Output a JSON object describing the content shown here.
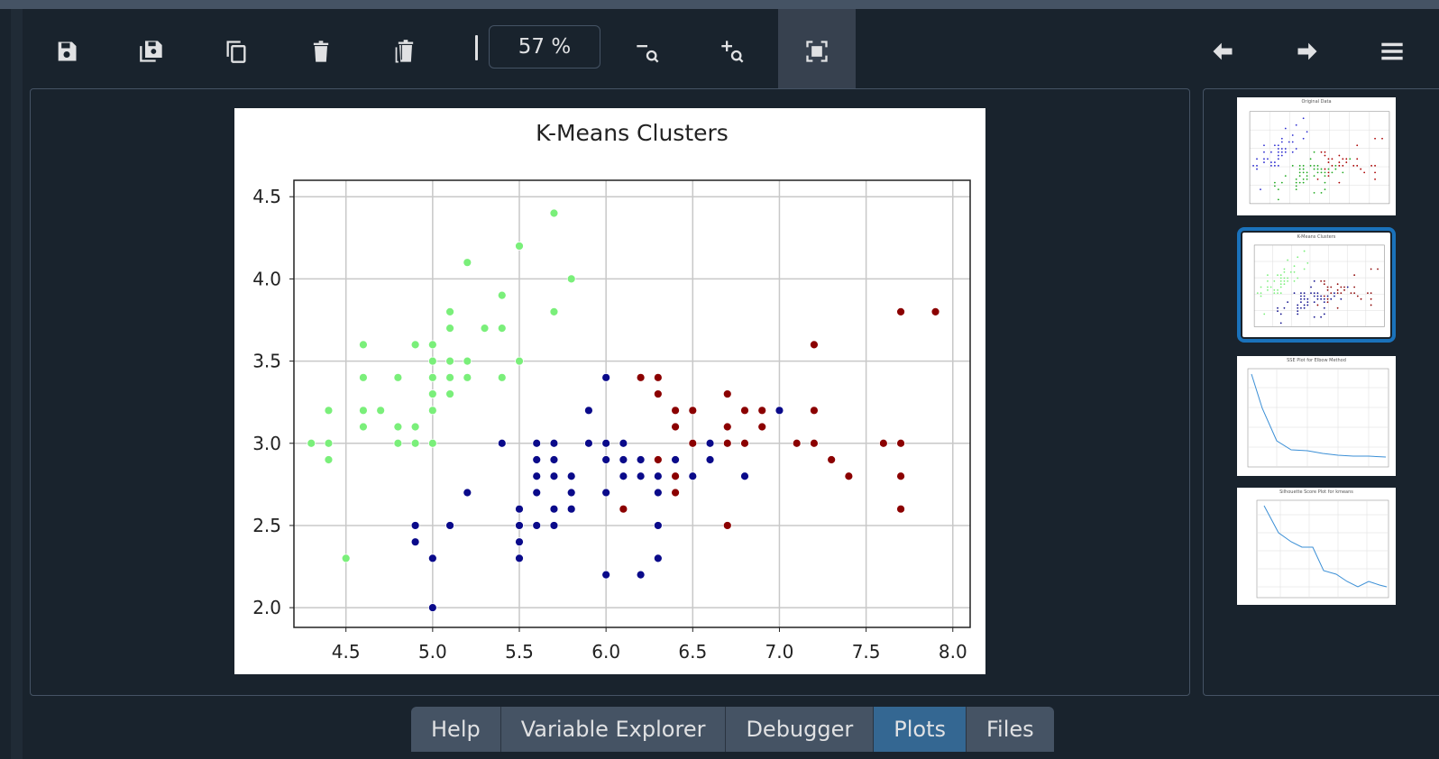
{
  "toolbar": {
    "zoom_value": "57 %",
    "buttons": [
      {
        "name": "save-icon"
      },
      {
        "name": "save-all-icon"
      },
      {
        "name": "copy-icon"
      },
      {
        "name": "delete-icon"
      },
      {
        "name": "delete-all-icon"
      },
      {
        "name": "zoom-out-icon"
      },
      {
        "name": "zoom-in-icon"
      },
      {
        "name": "fit-icon"
      },
      {
        "name": "previous-arrow-icon"
      },
      {
        "name": "next-arrow-icon"
      },
      {
        "name": "menu-icon"
      }
    ]
  },
  "chart_data": {
    "type": "scatter",
    "title": "K-Means Clusters",
    "xlabel": "",
    "ylabel": "",
    "xlim": [
      4.2,
      8.1
    ],
    "ylim": [
      1.88,
      4.6
    ],
    "xticks": [
      "4.5",
      "5.0",
      "5.5",
      "6.0",
      "6.5",
      "7.0",
      "7.5",
      "8.0"
    ],
    "yticks": [
      "2.0",
      "2.5",
      "3.0",
      "3.5",
      "4.0",
      "4.5"
    ],
    "grid": true,
    "series": [
      {
        "color": "#7aef7a",
        "points": [
          [
            4.3,
            3.0
          ],
          [
            4.4,
            3.2
          ],
          [
            4.4,
            3.0
          ],
          [
            4.4,
            2.9
          ],
          [
            4.5,
            2.3
          ],
          [
            4.6,
            3.6
          ],
          [
            4.6,
            3.4
          ],
          [
            4.6,
            3.2
          ],
          [
            4.6,
            3.1
          ],
          [
            4.7,
            3.2
          ],
          [
            4.8,
            3.4
          ],
          [
            4.8,
            3.1
          ],
          [
            4.8,
            3.0
          ],
          [
            4.9,
            3.6
          ],
          [
            4.9,
            3.1
          ],
          [
            4.9,
            3.0
          ],
          [
            5.0,
            3.6
          ],
          [
            5.0,
            3.5
          ],
          [
            5.0,
            3.4
          ],
          [
            5.0,
            3.3
          ],
          [
            5.0,
            3.2
          ],
          [
            5.0,
            3.0
          ],
          [
            5.1,
            3.8
          ],
          [
            5.1,
            3.7
          ],
          [
            5.1,
            3.5
          ],
          [
            5.1,
            3.4
          ],
          [
            5.1,
            3.3
          ],
          [
            5.2,
            4.1
          ],
          [
            5.2,
            3.5
          ],
          [
            5.2,
            3.4
          ],
          [
            5.3,
            3.7
          ],
          [
            5.4,
            3.9
          ],
          [
            5.4,
            3.7
          ],
          [
            5.4,
            3.4
          ],
          [
            5.5,
            4.2
          ],
          [
            5.5,
            3.5
          ],
          [
            5.7,
            4.4
          ],
          [
            5.7,
            3.8
          ],
          [
            5.8,
            4.0
          ]
        ]
      },
      {
        "color": "#0a0a8a",
        "points": [
          [
            4.9,
            2.5
          ],
          [
            4.9,
            2.4
          ],
          [
            5.0,
            2.3
          ],
          [
            5.0,
            2.0
          ],
          [
            5.1,
            2.5
          ],
          [
            5.2,
            2.7
          ],
          [
            5.4,
            3.0
          ],
          [
            5.5,
            2.6
          ],
          [
            5.5,
            2.5
          ],
          [
            5.5,
            2.4
          ],
          [
            5.5,
            2.3
          ],
          [
            5.6,
            3.0
          ],
          [
            5.6,
            2.9
          ],
          [
            5.6,
            2.8
          ],
          [
            5.6,
            2.7
          ],
          [
            5.6,
            2.5
          ],
          [
            5.7,
            3.0
          ],
          [
            5.7,
            2.9
          ],
          [
            5.7,
            2.8
          ],
          [
            5.7,
            2.6
          ],
          [
            5.7,
            2.5
          ],
          [
            5.8,
            2.8
          ],
          [
            5.8,
            2.7
          ],
          [
            5.8,
            2.6
          ],
          [
            5.9,
            3.2
          ],
          [
            5.9,
            3.0
          ],
          [
            6.0,
            3.4
          ],
          [
            6.0,
            3.0
          ],
          [
            6.0,
            2.9
          ],
          [
            6.0,
            2.7
          ],
          [
            6.0,
            2.2
          ],
          [
            6.1,
            3.0
          ],
          [
            6.1,
            2.9
          ],
          [
            6.1,
            2.8
          ],
          [
            6.2,
            2.9
          ],
          [
            6.2,
            2.8
          ],
          [
            6.2,
            2.2
          ],
          [
            6.3,
            2.8
          ],
          [
            6.3,
            2.7
          ],
          [
            6.3,
            2.5
          ],
          [
            6.3,
            2.3
          ],
          [
            6.4,
            2.9
          ],
          [
            6.5,
            2.8
          ],
          [
            6.6,
            3.0
          ],
          [
            6.6,
            2.9
          ],
          [
            6.8,
            2.8
          ],
          [
            7.0,
            3.2
          ]
        ]
      },
      {
        "color": "#8b0000",
        "points": [
          [
            6.1,
            2.6
          ],
          [
            6.2,
            3.4
          ],
          [
            6.3,
            3.4
          ],
          [
            6.3,
            3.3
          ],
          [
            6.3,
            2.9
          ],
          [
            6.4,
            3.2
          ],
          [
            6.4,
            3.1
          ],
          [
            6.4,
            2.8
          ],
          [
            6.4,
            2.7
          ],
          [
            6.5,
            3.2
          ],
          [
            6.5,
            3.0
          ],
          [
            6.7,
            3.3
          ],
          [
            6.7,
            3.1
          ],
          [
            6.7,
            3.0
          ],
          [
            6.7,
            2.5
          ],
          [
            6.8,
            3.2
          ],
          [
            6.8,
            3.0
          ],
          [
            6.9,
            3.2
          ],
          [
            6.9,
            3.1
          ],
          [
            7.1,
            3.0
          ],
          [
            7.2,
            3.6
          ],
          [
            7.2,
            3.2
          ],
          [
            7.2,
            3.0
          ],
          [
            7.3,
            2.9
          ],
          [
            7.4,
            2.8
          ],
          [
            7.6,
            3.0
          ],
          [
            7.7,
            3.8
          ],
          [
            7.7,
            3.0
          ],
          [
            7.7,
            2.8
          ],
          [
            7.7,
            2.6
          ],
          [
            7.9,
            3.8
          ]
        ]
      }
    ]
  },
  "thumbnails": [
    {
      "title": "Original Data"
    },
    {
      "title": "K-Means Clusters"
    },
    {
      "title": "SSE Plot for Elbow Method"
    },
    {
      "title": "Silhouette Score Plot for kmeans"
    }
  ],
  "tabs": [
    "Help",
    "Variable Explorer",
    "Debugger",
    "Plots",
    "Files"
  ],
  "active_tab": "Plots"
}
